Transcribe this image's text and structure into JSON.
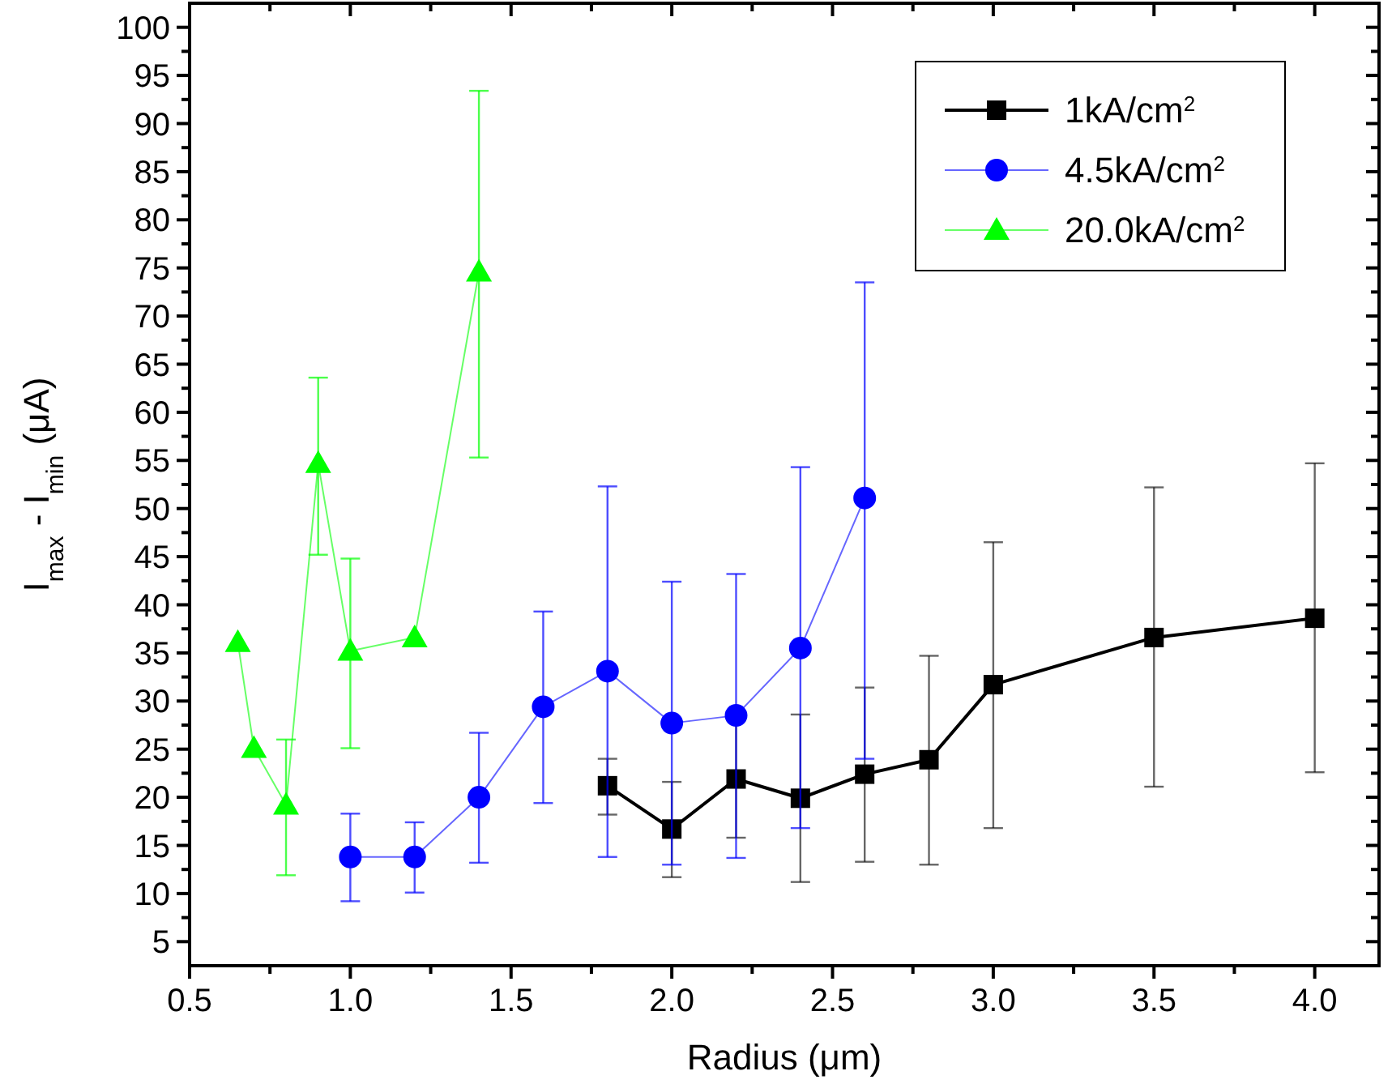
{
  "chart_data": {
    "type": "line",
    "xlabel": "Radius (μm)",
    "ylabel": "I$_{max}$ - I$_{min}$ (μA)",
    "xlim": [
      0.5,
      4.2
    ],
    "ylim": [
      2.5,
      102.5
    ],
    "xticks": [
      0.5,
      {
        "value": 0.75,
        "label": null
      },
      {
        "value": 1,
        "label": "1.0"
      },
      {
        "value": 1.25,
        "label": null
      },
      1.5,
      {
        "value": 1.75,
        "label": null
      },
      {
        "value": 2,
        "label": "2.0"
      },
      {
        "value": 2.25,
        "label": null
      },
      2.5,
      {
        "value": 2.75,
        "label": null
      },
      {
        "value": 3,
        "label": "3.0"
      },
      {
        "value": 3.25,
        "label": null
      },
      3.5,
      {
        "value": 3.75,
        "label": null
      },
      {
        "value": 4,
        "label": "4.0"
      }
    ],
    "yticks": [
      5,
      {
        "value": 7.5,
        "label": null
      },
      10,
      {
        "value": 12.5,
        "label": null
      },
      15,
      {
        "value": 17.5,
        "label": null
      },
      20,
      {
        "value": 22.5,
        "label": null
      },
      25,
      {
        "value": 27.5,
        "label": null
      },
      30,
      {
        "value": 32.5,
        "label": null
      },
      35,
      {
        "value": 37.5,
        "label": null
      },
      40,
      {
        "value": 42.5,
        "label": null
      },
      45,
      {
        "value": 47.5,
        "label": null
      },
      50,
      {
        "value": 52.5,
        "label": null
      },
      55,
      {
        "value": 57.5,
        "label": null
      },
      60,
      {
        "value": 62.5,
        "label": null
      },
      65,
      {
        "value": 67.5,
        "label": null
      },
      70,
      {
        "value": 72.5,
        "label": null
      },
      75,
      {
        "value": 77.5,
        "label": null
      },
      80,
      {
        "value": 82.5,
        "label": null
      },
      85,
      {
        "value": 87.5,
        "label": null
      },
      90,
      {
        "value": 92.5,
        "label": null
      },
      95,
      {
        "value": 97.5,
        "label": null
      },
      100
    ],
    "legend": "top right",
    "series": [
      {
        "name": "1kA/cm$^{2}$",
        "color": "#000000",
        "marker": "square",
        "x": [
          1.8,
          2.0,
          2.2,
          2.4,
          2.6,
          2.8,
          3.0,
          3.5,
          4.0
        ],
        "values": [
          21.2,
          16.7,
          21.9,
          19.9,
          22.4,
          23.9,
          31.7,
          36.6,
          38.6
        ],
        "errors": [
          [
            18.2,
            24.0
          ],
          [
            11.7,
            21.6
          ],
          [
            15.8,
            28.0
          ],
          [
            11.2,
            28.6
          ],
          [
            13.3,
            31.4
          ],
          [
            13.0,
            34.7
          ],
          [
            16.8,
            46.5
          ],
          [
            21.1,
            52.2
          ],
          [
            22.6,
            54.7
          ]
        ]
      },
      {
        "name": "4.5kA/cm$^{2}$",
        "color": "#0000ff",
        "marker": "circle",
        "x": [
          1.0,
          1.2,
          1.4,
          1.6,
          1.8,
          2.0,
          2.2,
          2.4,
          2.6
        ],
        "values": [
          13.8,
          13.8,
          20.0,
          29.4,
          33.1,
          27.7,
          28.5,
          35.5,
          51.1
        ],
        "errors": [
          [
            9.2,
            18.3
          ],
          [
            10.1,
            17.4
          ],
          [
            13.2,
            26.7
          ],
          [
            19.4,
            39.3
          ],
          [
            13.8,
            52.3
          ],
          [
            13.0,
            42.4
          ],
          [
            13.7,
            43.2
          ],
          [
            16.8,
            54.3
          ],
          [
            24.0,
            73.5
          ]
        ]
      },
      {
        "name": "20.0kA/cm$^{2}$",
        "color": "#00ff00",
        "marker": "triangle",
        "x": [
          0.65,
          0.7,
          0.8,
          0.9,
          1.0,
          1.2,
          1.4
        ],
        "values": [
          36.1,
          25.1,
          19.2,
          54.7,
          35.2,
          36.6,
          74.6
        ],
        "errors": [
          null,
          null,
          [
            11.9,
            26.0
          ],
          [
            45.2,
            63.6
          ],
          [
            25.1,
            44.8
          ],
          null,
          [
            55.3,
            93.4
          ]
        ]
      }
    ]
  }
}
